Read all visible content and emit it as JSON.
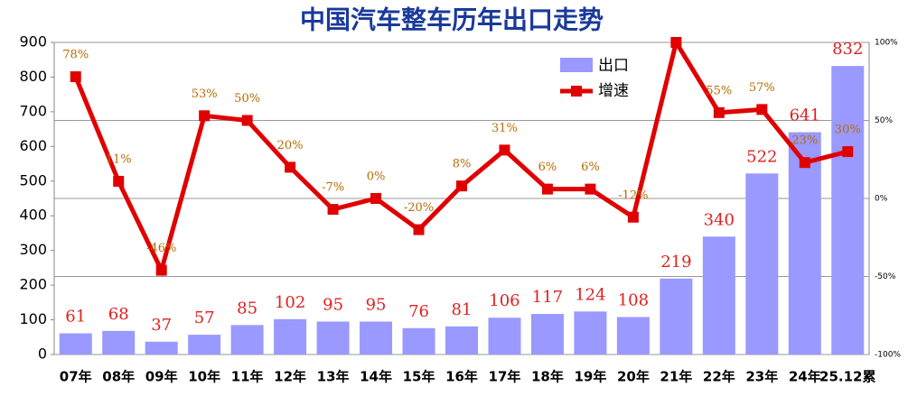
{
  "chart_data": {
    "type": "bar-line",
    "title": "中国汽车整车历年出口走势",
    "categories": [
      "07年",
      "08年",
      "09年",
      "10年",
      "11年",
      "12年",
      "13年",
      "14年",
      "15年",
      "16年",
      "17年",
      "18年",
      "19年",
      "20年",
      "21年",
      "22年",
      "23年",
      "24年",
      "25.12累"
    ],
    "series": [
      {
        "name": "出口",
        "type": "bar",
        "color": "#9999ff",
        "values": [
          61,
          68,
          37,
          57,
          85,
          102,
          95,
          95,
          76,
          81,
          106,
          117,
          124,
          108,
          219,
          340,
          522,
          641,
          832
        ]
      },
      {
        "name": "增速",
        "type": "line",
        "axis": "y2",
        "color": "#e00000",
        "values": [
          78,
          11,
          -46,
          53,
          50,
          20,
          -7,
          0,
          -20,
          8,
          31,
          6,
          6,
          -12,
          100,
          55,
          57,
          23,
          30
        ],
        "value_labels": [
          "78%",
          "11%",
          "-46%",
          "53%",
          "50%",
          "20%",
          "-7%",
          "0%",
          "-20%",
          "8%",
          "31%",
          "6%",
          "6%",
          "-12%",
          null,
          "55%",
          "57%",
          "23%",
          "30%"
        ]
      }
    ],
    "ylim": [
      0,
      900
    ],
    "yticks": [
      0,
      100,
      200,
      300,
      400,
      500,
      600,
      700,
      800,
      900
    ],
    "y2lim": [
      -100,
      100
    ],
    "y2ticks": [
      {
        "value": -100,
        "label": "-100%"
      },
      {
        "value": -50,
        "label": "-50%"
      },
      {
        "value": 0,
        "label": "0%"
      },
      {
        "value": 50,
        "label": "50%"
      },
      {
        "value": 100,
        "label": "100%"
      }
    ],
    "grid": true,
    "legend": "top-right"
  }
}
